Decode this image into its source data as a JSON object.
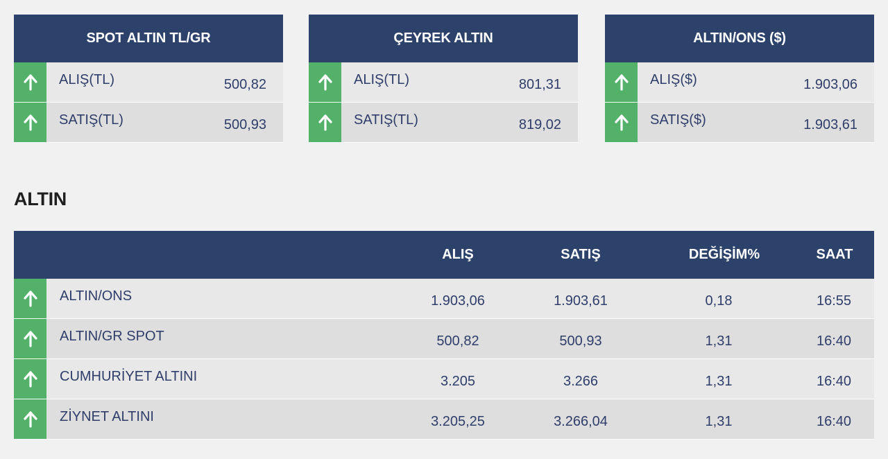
{
  "cards": [
    {
      "title": "SPOT ALTIN TL/GR",
      "rows": [
        {
          "label": "ALIŞ(TL)",
          "value": "500,82",
          "trend_icon": "arrow-up-icon"
        },
        {
          "label": "SATIŞ(TL)",
          "value": "500,93",
          "trend_icon": "arrow-up-icon"
        }
      ]
    },
    {
      "title": "ÇEYREK ALTIN",
      "rows": [
        {
          "label": "ALIŞ(TL)",
          "value": "801,31",
          "trend_icon": "arrow-up-icon"
        },
        {
          "label": "SATIŞ(TL)",
          "value": "819,02",
          "trend_icon": "arrow-up-icon"
        }
      ]
    },
    {
      "title": "ALTIN/ONS ($)",
      "rows": [
        {
          "label": "ALIŞ($)",
          "value": "1.903,06",
          "trend_icon": "arrow-up-icon"
        },
        {
          "label": "SATIŞ($)",
          "value": "1.903,61",
          "trend_icon": "arrow-up-icon"
        }
      ]
    }
  ],
  "section_title": "ALTIN",
  "table": {
    "headers": {
      "alis": "ALIŞ",
      "satis": "SATIŞ",
      "degisim": "DEĞİŞİM%",
      "saat": "SAAT"
    },
    "rows": [
      {
        "name": "ALTIN/ONS",
        "alis": "1.903,06",
        "satis": "1.903,61",
        "degisim": "0,18",
        "saat": "16:55"
      },
      {
        "name": "ALTIN/GR SPOT",
        "alis": "500,82",
        "satis": "500,93",
        "degisim": "1,31",
        "saat": "16:40"
      },
      {
        "name": "CUMHURİYET ALTINI",
        "alis": "3.205",
        "satis": "3.266",
        "degisim": "1,31",
        "saat": "16:40"
      },
      {
        "name": "ZİYNET ALTINI",
        "alis": "3.205,25",
        "satis": "3.266,04",
        "degisim": "1,31",
        "saat": "16:40"
      }
    ]
  },
  "colors": {
    "header_bg": "#2c426b",
    "up_indicator": "#53b16a",
    "text": "#2f3d6a",
    "row_odd": "#e8e8e8",
    "row_even": "#dedede"
  }
}
